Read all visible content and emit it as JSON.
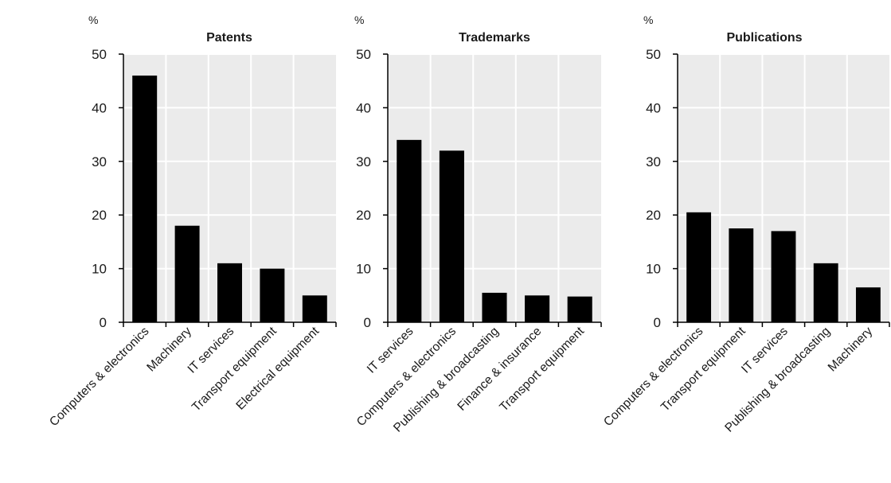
{
  "chart_data": [
    {
      "type": "bar",
      "title": "Patents",
      "ylabel": "%",
      "xlabel": "",
      "ylim": [
        0,
        50
      ],
      "yticks": [
        "0",
        "10",
        "20",
        "30",
        "40",
        "50"
      ],
      "categories": [
        "Computers & electronics",
        "Machinery",
        "IT services",
        "Transport equipment",
        "Electrical equipment"
      ],
      "values": [
        46,
        18,
        11,
        10,
        5
      ],
      "grid": true,
      "bar_color": "#000000",
      "plot_background": "#ebebeb"
    },
    {
      "type": "bar",
      "title": "Trademarks",
      "ylabel": "%",
      "xlabel": "",
      "ylim": [
        0,
        50
      ],
      "yticks": [
        "0",
        "10",
        "20",
        "30",
        "40",
        "50"
      ],
      "categories": [
        "IT services",
        "Computers & electronics",
        "Publishing & broadcasting",
        "Finance & insurance",
        "Transport equipment"
      ],
      "values": [
        34,
        32,
        5.5,
        5,
        4.8
      ],
      "grid": true,
      "bar_color": "#000000",
      "plot_background": "#ebebeb"
    },
    {
      "type": "bar",
      "title": "Publications",
      "ylabel": "%",
      "xlabel": "",
      "ylim": [
        0,
        50
      ],
      "yticks": [
        "0",
        "10",
        "20",
        "30",
        "40",
        "50"
      ],
      "categories": [
        "Computers & electronics",
        "Transport equipment",
        "IT services",
        "Publishing & broadcasting",
        "Machinery"
      ],
      "values": [
        20.5,
        17.5,
        17,
        11,
        6.5
      ],
      "grid": true,
      "bar_color": "#000000",
      "plot_background": "#ebebeb"
    }
  ]
}
